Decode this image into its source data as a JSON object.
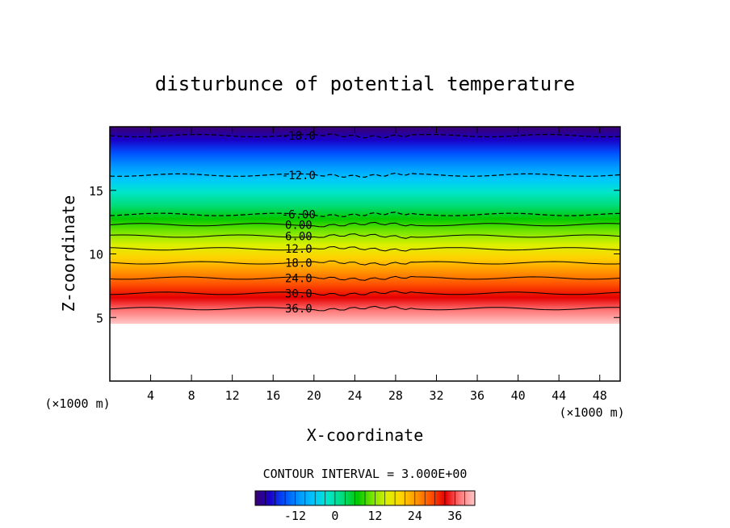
{
  "chart_data": {
    "type": "heatmap",
    "title": "disturbunce of potential temperature",
    "xlabel": "X-coordinate",
    "ylabel": "Z-coordinate",
    "x_unit": "(×1000 m)",
    "y_unit": "(×1000 m)",
    "xlim": [
      0,
      50
    ],
    "ylim": [
      0,
      20
    ],
    "x_ticks": [
      4,
      8,
      12,
      16,
      20,
      24,
      28,
      32,
      36,
      40,
      44,
      48
    ],
    "y_ticks": [
      5,
      10,
      15
    ],
    "contour_interval_text": "CONTOUR INTERVAL = 3.000E+00",
    "contour_levels": [
      {
        "value": -18,
        "label": "-18.0",
        "z": 19.3,
        "dashed": true
      },
      {
        "value": -12,
        "label": "-12.0",
        "z": 16.2,
        "dashed": true
      },
      {
        "value": -6,
        "label": "-6.00",
        "z": 13.1,
        "dashed": true
      },
      {
        "value": 0,
        "label": "0.00",
        "z": 12.3,
        "dashed": false
      },
      {
        "value": 6,
        "label": "6.00",
        "z": 11.4,
        "dashed": false
      },
      {
        "value": 12,
        "label": "12.0",
        "z": 10.4,
        "dashed": false
      },
      {
        "value": 18,
        "label": "18.0",
        "z": 9.3,
        "dashed": false
      },
      {
        "value": 24,
        "label": "24.0",
        "z": 8.1,
        "dashed": false
      },
      {
        "value": 30,
        "label": "30.0",
        "z": 6.9,
        "dashed": false
      },
      {
        "value": 36,
        "label": "36.0",
        "z": 5.7,
        "dashed": false
      }
    ],
    "data_z_bottom": 4.5,
    "colorbar": {
      "min": -24,
      "max": 42,
      "ticks": [
        -12,
        0,
        12,
        24,
        36
      ],
      "colors": [
        "#3a006e",
        "#1a00c8",
        "#0050ff",
        "#0096ff",
        "#00c8ff",
        "#00e6c8",
        "#00dc78",
        "#00c800",
        "#78e600",
        "#dcf000",
        "#ffd200",
        "#ff9600",
        "#ff5000",
        "#e60000",
        "#ff7878",
        "#ffc8c8"
      ]
    }
  }
}
